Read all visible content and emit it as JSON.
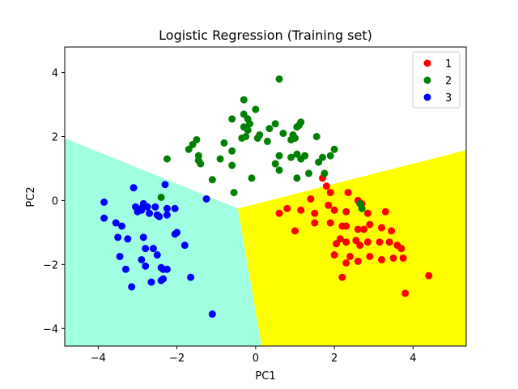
{
  "chart_data": {
    "type": "scatter",
    "title": "Logistic Regression (Training set)",
    "xlabel": "PC1",
    "ylabel": "PC2",
    "xlim": [
      -4.85,
      5.35
    ],
    "ylim": [
      -4.55,
      4.8
    ],
    "xticks": [
      -4,
      -2,
      0,
      2,
      4
    ],
    "yticks": [
      -4,
      -2,
      0,
      2,
      4
    ],
    "legend_position": "top-right",
    "grid": false,
    "decision_regions": [
      {
        "class": "1",
        "color": "#ffff00",
        "polygon": [
          [
            -0.45,
            -0.25
          ],
          [
            5.35,
            1.58
          ],
          [
            5.35,
            -4.55
          ],
          [
            0.15,
            -4.55
          ]
        ]
      },
      {
        "class": "2",
        "color": "#ffffff",
        "polygon": [
          [
            -4.85,
            1.95
          ],
          [
            -0.45,
            -0.25
          ],
          [
            5.35,
            1.58
          ],
          [
            5.35,
            4.8
          ],
          [
            -4.85,
            4.8
          ]
        ]
      },
      {
        "class": "3",
        "color": "#a0ffe0",
        "polygon": [
          [
            -4.85,
            1.95
          ],
          [
            -0.45,
            -0.25
          ],
          [
            0.15,
            -4.55
          ],
          [
            -4.85,
            -4.55
          ]
        ]
      }
    ],
    "series": [
      {
        "name": "1",
        "color": "#ff0000",
        "points": [
          [
            1.7,
            0.7
          ],
          [
            1.8,
            0.45
          ],
          [
            1.4,
            0.05
          ],
          [
            1.9,
            0.25
          ],
          [
            2.35,
            0.25
          ],
          [
            2.6,
            0.0
          ],
          [
            2.7,
            -0.1
          ],
          [
            0.6,
            -0.4
          ],
          [
            0.8,
            -0.25
          ],
          [
            1.15,
            -0.3
          ],
          [
            1.5,
            -0.4
          ],
          [
            1.85,
            -0.15
          ],
          [
            2.0,
            -0.3
          ],
          [
            2.3,
            -0.35
          ],
          [
            2.85,
            -0.4
          ],
          [
            3.3,
            -0.35
          ],
          [
            1.0,
            -0.95
          ],
          [
            1.5,
            -0.7
          ],
          [
            1.9,
            -0.7
          ],
          [
            2.2,
            -0.8
          ],
          [
            2.3,
            -0.8
          ],
          [
            2.6,
            -0.9
          ],
          [
            2.75,
            -0.9
          ],
          [
            2.9,
            -0.75
          ],
          [
            3.2,
            -0.85
          ],
          [
            3.45,
            -0.95
          ],
          [
            2.05,
            -1.35
          ],
          [
            2.15,
            -1.2
          ],
          [
            2.3,
            -1.3
          ],
          [
            2.55,
            -1.25
          ],
          [
            2.65,
            -1.4
          ],
          [
            2.85,
            -1.3
          ],
          [
            3.15,
            -1.3
          ],
          [
            3.4,
            -1.3
          ],
          [
            3.6,
            -1.4
          ],
          [
            3.7,
            -1.5
          ],
          [
            2.0,
            -1.7
          ],
          [
            2.4,
            -1.75
          ],
          [
            2.6,
            -1.9
          ],
          [
            2.9,
            -1.75
          ],
          [
            3.2,
            -1.85
          ],
          [
            3.5,
            -1.8
          ],
          [
            3.75,
            -1.8
          ],
          [
            2.3,
            -1.95
          ],
          [
            2.2,
            -2.4
          ],
          [
            3.8,
            -2.9
          ],
          [
            4.4,
            -2.35
          ]
        ]
      },
      {
        "name": "2",
        "color": "#008000",
        "points": [
          [
            -0.3,
            3.15
          ],
          [
            0.6,
            3.8
          ],
          [
            -0.6,
            2.55
          ],
          [
            -0.3,
            2.7
          ],
          [
            -0.2,
            2.55
          ],
          [
            -0.15,
            2.4
          ],
          [
            -0.2,
            2.2
          ],
          [
            -0.3,
            2.3
          ],
          [
            0.0,
            2.85
          ],
          [
            0.35,
            2.25
          ],
          [
            0.5,
            2.4
          ],
          [
            0.1,
            2.05
          ],
          [
            -0.25,
            2.0
          ],
          [
            -0.35,
            1.95
          ],
          [
            0.05,
            1.95
          ],
          [
            0.3,
            1.85
          ],
          [
            -0.8,
            1.8
          ],
          [
            -0.6,
            1.55
          ],
          [
            -0.9,
            1.3
          ],
          [
            -1.7,
            1.6
          ],
          [
            -1.5,
            1.9
          ],
          [
            -1.6,
            1.75
          ],
          [
            -1.45,
            1.4
          ],
          [
            -1.45,
            1.25
          ],
          [
            -2.25,
            1.3
          ],
          [
            -1.4,
            1.15
          ],
          [
            -1.1,
            0.65
          ],
          [
            -0.6,
            1.1
          ],
          [
            -0.55,
            0.25
          ],
          [
            -0.1,
            0.7
          ],
          [
            0.5,
            1.15
          ],
          [
            0.6,
            1.4
          ],
          [
            0.9,
            1.9
          ],
          [
            1.1,
            2.35
          ],
          [
            1.05,
            2.3
          ],
          [
            0.95,
            2.05
          ],
          [
            1.15,
            2.45
          ],
          [
            1.0,
            1.95
          ],
          [
            0.7,
            2.1
          ],
          [
            0.9,
            1.35
          ],
          [
            1.05,
            1.45
          ],
          [
            1.15,
            1.3
          ],
          [
            1.25,
            1.4
          ],
          [
            1.6,
            1.2
          ],
          [
            1.7,
            1.35
          ],
          [
            1.75,
            0.85
          ],
          [
            1.9,
            1.4
          ],
          [
            2.0,
            1.6
          ],
          [
            1.55,
            2.0
          ],
          [
            1.35,
            0.85
          ],
          [
            1.05,
            0.7
          ],
          [
            0.6,
            0.95
          ],
          [
            2.65,
            -0.1
          ],
          [
            2.7,
            -0.25
          ],
          [
            -2.4,
            0.1
          ]
        ]
      },
      {
        "name": "3",
        "color": "#0000ff",
        "points": [
          [
            -3.85,
            -0.05
          ],
          [
            -3.85,
            -0.55
          ],
          [
            -3.55,
            -0.7
          ],
          [
            -3.4,
            -0.8
          ],
          [
            -3.5,
            -1.15
          ],
          [
            -3.25,
            -1.2
          ],
          [
            -3.1,
            0.4
          ],
          [
            -3.05,
            -0.2
          ],
          [
            -2.85,
            -0.1
          ],
          [
            -2.9,
            -0.3
          ],
          [
            -2.75,
            -0.2
          ],
          [
            -2.7,
            -0.4
          ],
          [
            -2.55,
            -0.2
          ],
          [
            -2.5,
            -0.45
          ],
          [
            -2.45,
            -0.5
          ],
          [
            -2.25,
            -0.25
          ],
          [
            -2.25,
            -0.45
          ],
          [
            -2.05,
            -0.25
          ],
          [
            -2.3,
            0.5
          ],
          [
            -2.0,
            -1.0
          ],
          [
            -2.05,
            -1.05
          ],
          [
            -1.8,
            -1.4
          ],
          [
            -2.85,
            -1.15
          ],
          [
            -2.8,
            -1.5
          ],
          [
            -2.6,
            -1.5
          ],
          [
            -3.45,
            -1.75
          ],
          [
            -3.3,
            -2.15
          ],
          [
            -2.9,
            -1.85
          ],
          [
            -2.8,
            -2.05
          ],
          [
            -2.5,
            -1.7
          ],
          [
            -2.4,
            -2.1
          ],
          [
            -2.35,
            -2.15
          ],
          [
            -2.25,
            -2.15
          ],
          [
            -2.65,
            -2.55
          ],
          [
            -2.35,
            -2.45
          ],
          [
            -2.4,
            -2.5
          ],
          [
            -3.15,
            -2.7
          ],
          [
            -1.65,
            -2.4
          ],
          [
            -1.1,
            -3.55
          ],
          [
            -1.25,
            0.05
          ],
          [
            -2.9,
            -0.25
          ],
          [
            -3.0,
            -0.35
          ]
        ]
      }
    ]
  }
}
